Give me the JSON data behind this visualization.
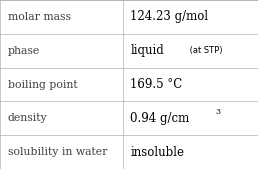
{
  "rows": [
    {
      "label": "molar mass",
      "value": "124.23 g/mol",
      "type": "simple"
    },
    {
      "label": "phase",
      "value": "liquid",
      "suffix": " (at STP)",
      "type": "phase"
    },
    {
      "label": "boiling point",
      "value": "169.5 °C",
      "type": "simple"
    },
    {
      "label": "density",
      "value": "0.94 g/cm",
      "superscript": "3",
      "type": "density"
    },
    {
      "label": "solubility in water",
      "value": "insoluble",
      "type": "simple"
    }
  ],
  "background_color": "#ffffff",
  "grid_color": "#b0b0b0",
  "label_color": "#404040",
  "value_color": "#000000",
  "label_fontsize": 7.8,
  "value_fontsize": 8.5,
  "suffix_fontsize": 6.0,
  "super_fontsize": 5.5,
  "col_split": 0.475,
  "fig_width": 2.58,
  "fig_height": 1.69,
  "dpi": 100
}
